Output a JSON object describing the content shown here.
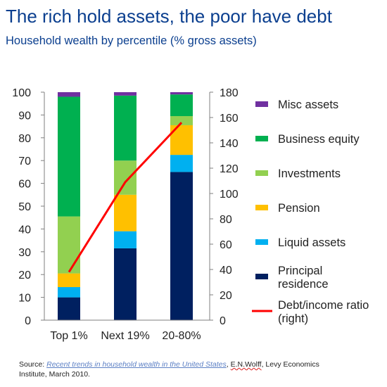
{
  "header": {
    "title": "The rich hold assets, the poor have debt",
    "subtitle": "Household wealth by percentile (% gross assets)"
  },
  "source": {
    "prefix": "Source: ",
    "link_text": "Recent trends in household wealth in the United States",
    "sep": ", ",
    "author": "E.N.Wolff",
    "rest": ", Levy Economics Institute, March 2010."
  },
  "chart_data": {
    "type": "bar",
    "stacked": true,
    "categories": [
      "Top 1%",
      "Next 19%",
      "20-80%"
    ],
    "series": [
      {
        "name": "Principal residence",
        "color": "#002060",
        "values": [
          10,
          31.5,
          65
        ]
      },
      {
        "name": "Liquid assets",
        "color": "#00b0f0",
        "values": [
          4.5,
          7.5,
          7.5
        ]
      },
      {
        "name": "Pension",
        "color": "#ffc000",
        "values": [
          6,
          16,
          13
        ]
      },
      {
        "name": "Investments",
        "color": "#92d050",
        "values": [
          25,
          15,
          4
        ]
      },
      {
        "name": "Business equity",
        "color": "#00b050",
        "values": [
          52.5,
          28.5,
          9.5
        ]
      },
      {
        "name": "Misc assets",
        "color": "#7030a0",
        "values": [
          2,
          1.5,
          1
        ]
      }
    ],
    "line": {
      "name": "Debt/income ratio (right)",
      "color": "#ff0000",
      "values": [
        38,
        109,
        156
      ]
    },
    "yticks_left": [
      "0",
      "10",
      "20",
      "30",
      "40",
      "50",
      "60",
      "70",
      "80",
      "90",
      "100"
    ],
    "yticks_right": [
      "0",
      "20",
      "40",
      "60",
      "80",
      "100",
      "120",
      "140",
      "160",
      "180"
    ],
    "ylim_left": [
      0,
      100
    ],
    "ylim_right": [
      0,
      180
    ],
    "legend": [
      {
        "label": "Misc assets",
        "color": "#7030a0",
        "kind": "box"
      },
      {
        "label": "Business equity",
        "color": "#00b050",
        "kind": "box"
      },
      {
        "label": "Investments",
        "color": "#92d050",
        "kind": "box"
      },
      {
        "label": "Pension",
        "color": "#ffc000",
        "kind": "box"
      },
      {
        "label": "Liquid assets",
        "color": "#00b0f0",
        "kind": "box"
      },
      {
        "label": "Principal residence",
        "color": "#002060",
        "kind": "box"
      },
      {
        "label": "Debt/income ratio (right)",
        "color": "#ff0000",
        "kind": "line"
      }
    ]
  }
}
